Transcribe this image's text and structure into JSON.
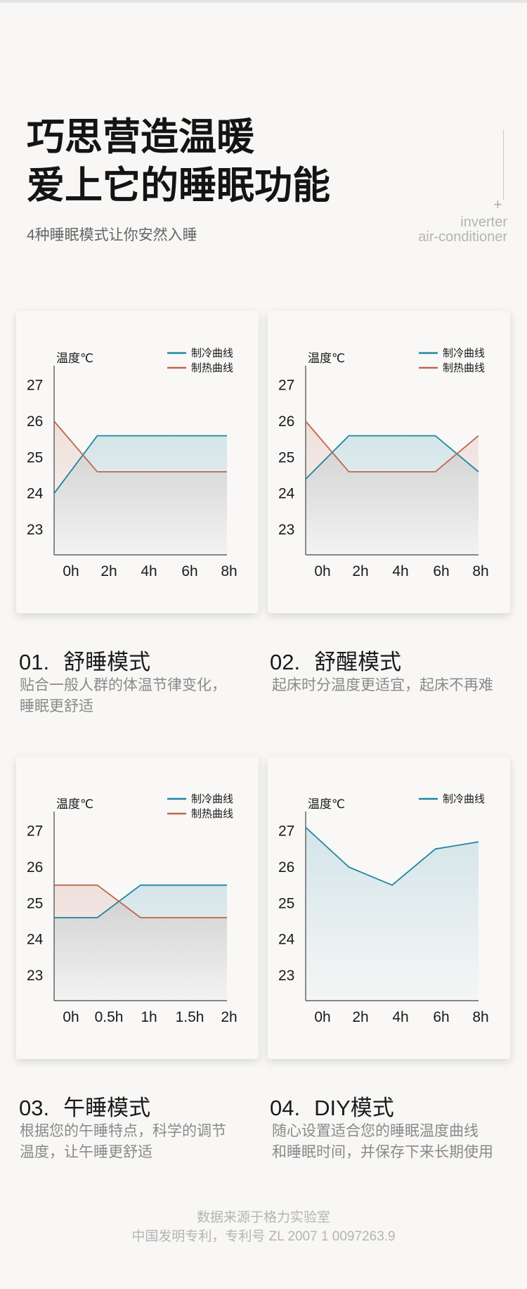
{
  "header": {
    "title_line1": "巧思营造温暖",
    "title_line2": "爱上它的睡眠功能",
    "subtitle": "4种睡眠模式让你安然入睡",
    "plus": "+",
    "brand_line1": "inverter",
    "brand_line2": "air-conditioner"
  },
  "colors": {
    "cool": "#1e86a2",
    "heat": "#c0654f",
    "axis": "#444444",
    "text": "#1a1a1a",
    "muted": "#8a8a8a"
  },
  "chart_data": [
    {
      "type": "line",
      "ylabel": "温度℃",
      "categories": [
        "0h",
        "2h",
        "4h",
        "6h",
        "8h"
      ],
      "yticks": [
        23,
        24,
        25,
        26,
        27
      ],
      "ylim": [
        22.3,
        27.5
      ],
      "grid": false,
      "legend": "top-right",
      "series": [
        {
          "name": "制冷曲线",
          "color": "#1e86a2",
          "values": [
            24.0,
            25.6,
            25.6,
            25.6,
            25.6
          ]
        },
        {
          "name": "制热曲线",
          "color": "#c0654f",
          "values": [
            26.0,
            24.6,
            24.6,
            24.6,
            24.6
          ]
        }
      ]
    },
    {
      "type": "line",
      "ylabel": "温度℃",
      "categories": [
        "0h",
        "2h",
        "4h",
        "6h",
        "8h"
      ],
      "yticks": [
        23,
        24,
        25,
        26,
        27
      ],
      "ylim": [
        22.3,
        27.5
      ],
      "grid": false,
      "legend": "top-right",
      "series": [
        {
          "name": "制冷曲线",
          "color": "#1e86a2",
          "values": [
            24.4,
            25.6,
            25.6,
            25.6,
            24.6
          ]
        },
        {
          "name": "制热曲线",
          "color": "#c0654f",
          "values": [
            26.0,
            24.6,
            24.6,
            24.6,
            25.6
          ]
        }
      ]
    },
    {
      "type": "line",
      "ylabel": "温度℃",
      "categories": [
        "0h",
        "0.5h",
        "1h",
        "1.5h",
        "2h"
      ],
      "yticks": [
        23,
        24,
        25,
        26,
        27
      ],
      "ylim": [
        22.3,
        27.5
      ],
      "grid": false,
      "legend": "top-right",
      "series": [
        {
          "name": "制冷曲线",
          "color": "#1e86a2",
          "values": [
            24.6,
            24.6,
            25.5,
            25.5,
            25.5
          ]
        },
        {
          "name": "制热曲线",
          "color": "#c0654f",
          "values": [
            25.5,
            25.5,
            24.6,
            24.6,
            24.6
          ]
        }
      ]
    },
    {
      "type": "line",
      "ylabel": "温度℃",
      "categories": [
        "0h",
        "2h",
        "4h",
        "6h",
        "8h"
      ],
      "yticks": [
        23,
        24,
        25,
        26,
        27
      ],
      "ylim": [
        22.3,
        27.5
      ],
      "grid": false,
      "legend": "top-right",
      "series": [
        {
          "name": "制冷曲线",
          "color": "#1e86a2",
          "values": [
            27.1,
            26.0,
            25.5,
            26.5,
            26.7
          ]
        }
      ]
    }
  ],
  "modes": [
    {
      "num": "01.",
      "title": "舒睡模式",
      "desc_line1": "贴合一般人群的体温节律变化，",
      "desc_line2": "睡眠更舒适"
    },
    {
      "num": "02.",
      "title": "舒醒模式",
      "desc_line1": "起床时分温度更适宜，起床不再难",
      "desc_line2": ""
    },
    {
      "num": "03.",
      "title": "午睡模式",
      "desc_line1": "根据您的午睡特点，科学的调节",
      "desc_line2": "温度，让午睡更舒适"
    },
    {
      "num": "04.",
      "title": "DIY模式",
      "desc_line1": "随心设置适合您的睡眠温度曲线",
      "desc_line2": "和睡眠时间，并保存下来长期使用"
    }
  ],
  "footer": {
    "line1": "数据来源于格力实验室",
    "line2": "中国发明专利，专利号 ZL 2007 1 0097263.9"
  }
}
